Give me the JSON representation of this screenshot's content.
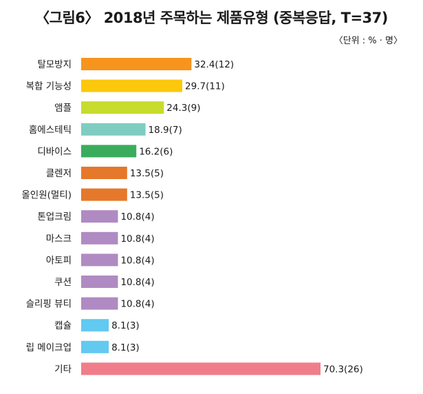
{
  "title": "〈그림6〉 2018년 주목하는 제품유형 (중복응답, T=37)",
  "unit_note": "〈단위 : % · 명〉",
  "chart_data": {
    "type": "bar",
    "orientation": "horizontal",
    "title": "〈그림6〉 2018년 주목하는 제품유형 (중복응답, T=37)",
    "unit": "〈단위 : % · 명〉",
    "categories": [
      "탈모방지",
      "복합 기능성",
      "앰플",
      "홈에스테틱",
      "디바이스",
      "클렌저",
      "올인원(멀티)",
      "톤업크림",
      "마스크",
      "아토피",
      "쿠션",
      "슬리핑 뷰티",
      "캡슐",
      "립 메이크업",
      "기타"
    ],
    "values": [
      32.4,
      29.7,
      24.3,
      18.9,
      16.2,
      13.5,
      13.5,
      10.8,
      10.8,
      10.8,
      10.8,
      10.8,
      8.1,
      8.1,
      70.3
    ],
    "counts": [
      12,
      11,
      9,
      7,
      6,
      5,
      5,
      4,
      4,
      4,
      4,
      4,
      3,
      3,
      26
    ],
    "data_labels": [
      "32.4(12)",
      "29.7(11)",
      "24.3(9)",
      "18.9(7)",
      "16.2(6)",
      "13.5(5)",
      "13.5(5)",
      "10.8(4)",
      "10.8(4)",
      "10.8(4)",
      "10.8(4)",
      "10.8(4)",
      "8.1(3)",
      "8.1(3)",
      "70.3(26)"
    ],
    "colors": [
      "#f7941d",
      "#fcc80b",
      "#c7dc2c",
      "#7fcdc1",
      "#3aad5c",
      "#e5782a",
      "#e5782a",
      "#b08ac2",
      "#b08ac2",
      "#b08ac2",
      "#b08ac2",
      "#b08ac2",
      "#62c9f0",
      "#62c9f0",
      "#f07d8a"
    ],
    "xlim": [
      0,
      70.3
    ],
    "grid": false,
    "legend": "none"
  }
}
